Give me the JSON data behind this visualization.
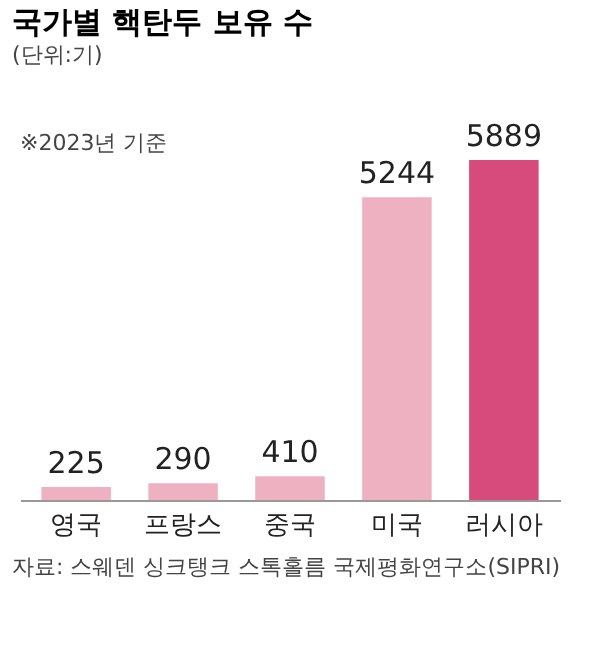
{
  "chart_data": {
    "type": "bar",
    "title": "국가별 핵탄두 보유 수",
    "subtitle": "(단위:기)",
    "categories": [
      "영국",
      "프랑스",
      "중국",
      "미국",
      "러시아"
    ],
    "values": [
      225,
      290,
      410,
      5244,
      5889
    ],
    "colors": [
      "#eeb1c2",
      "#eeb1c2",
      "#eeb1c2",
      "#eeb1c2",
      "#d64a7c"
    ],
    "data_labels": true,
    "annotations": [
      "※2023년 기준",
      "자료: 스웨덴 싱크탱크 스톡홀름 국제평화연구소(SIPRI)"
    ]
  }
}
